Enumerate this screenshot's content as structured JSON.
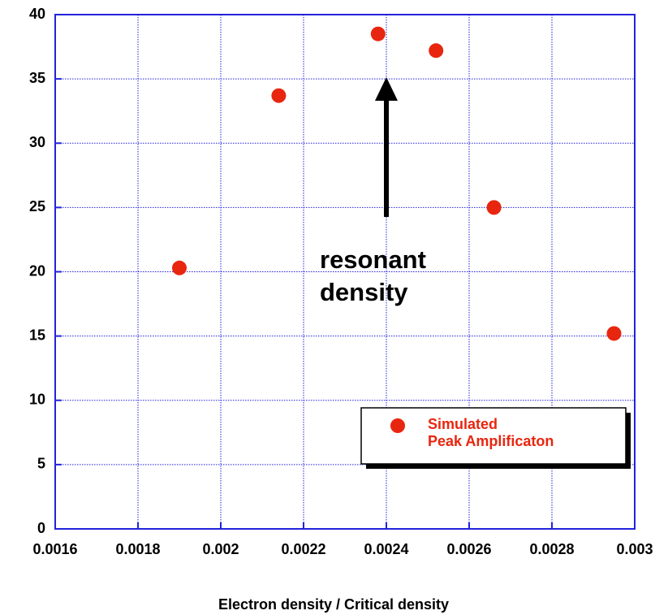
{
  "chart_data": {
    "type": "scatter",
    "x_label": "Electron density / Critical density",
    "annotation": "resonant\ndensity",
    "series": [
      {
        "name": "Simulated\nPeak Amplificaton",
        "color": "#e8260f",
        "x": [
          0.0019,
          0.00214,
          0.00238,
          0.00252,
          0.00266,
          0.00295
        ],
        "values": [
          20.3,
          33.7,
          38.5,
          37.2,
          25.0,
          15.2
        ]
      }
    ],
    "xlim": [
      0.0016,
      0.003
    ],
    "xticks": [
      0.0016,
      0.0018,
      0.002,
      0.0022,
      0.0024,
      0.0026,
      0.0028,
      0.003
    ],
    "ylim": [
      0,
      40
    ],
    "yticks": [
      0,
      5,
      10,
      15,
      20,
      25,
      30,
      35,
      40
    ],
    "grid": true,
    "legend": "lower right"
  }
}
